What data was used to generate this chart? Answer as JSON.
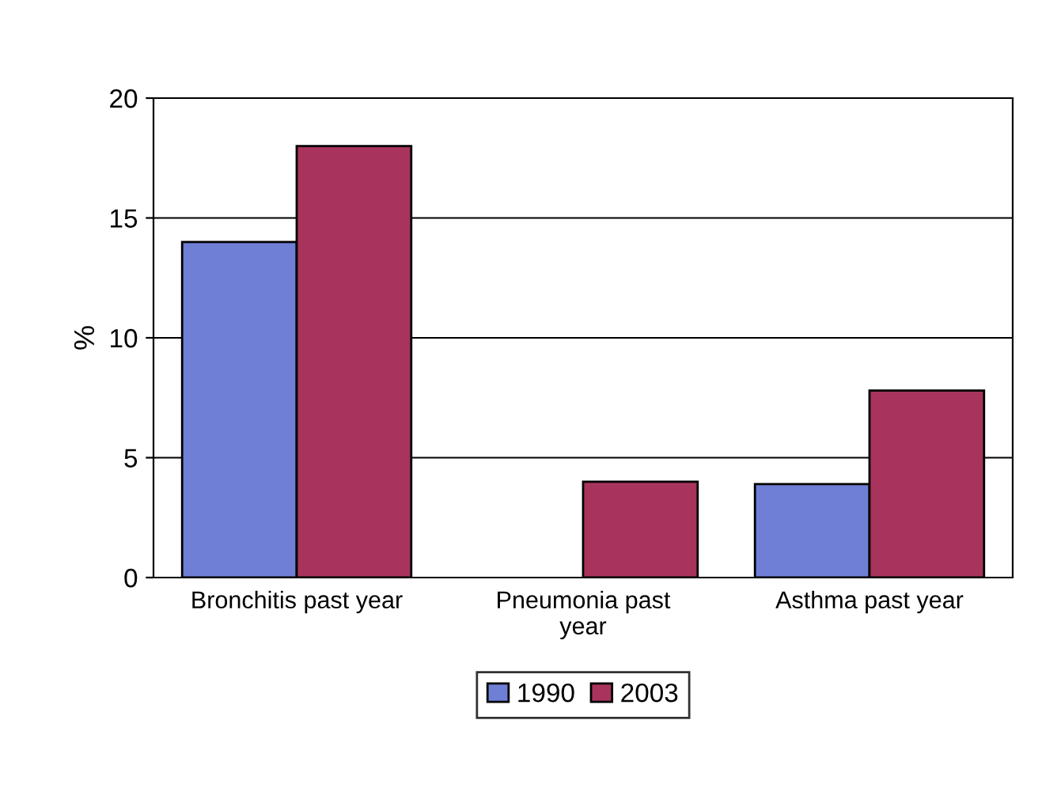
{
  "chart_data": {
    "type": "bar",
    "ylabel": "%",
    "categories": [
      "Bronchitis past year",
      "Pneumonia past\nyear",
      "Asthma past year"
    ],
    "series": [
      {
        "name": "1990",
        "color": "#6f7fd6",
        "values": [
          14,
          null,
          3.9
        ]
      },
      {
        "name": "2003",
        "color": "#a8345e",
        "values": [
          18,
          4,
          7.8
        ]
      }
    ],
    "ylim": [
      0,
      20
    ],
    "yticks": [
      0,
      5,
      10,
      15,
      20
    ],
    "grid": "y",
    "legend": "bottom"
  }
}
